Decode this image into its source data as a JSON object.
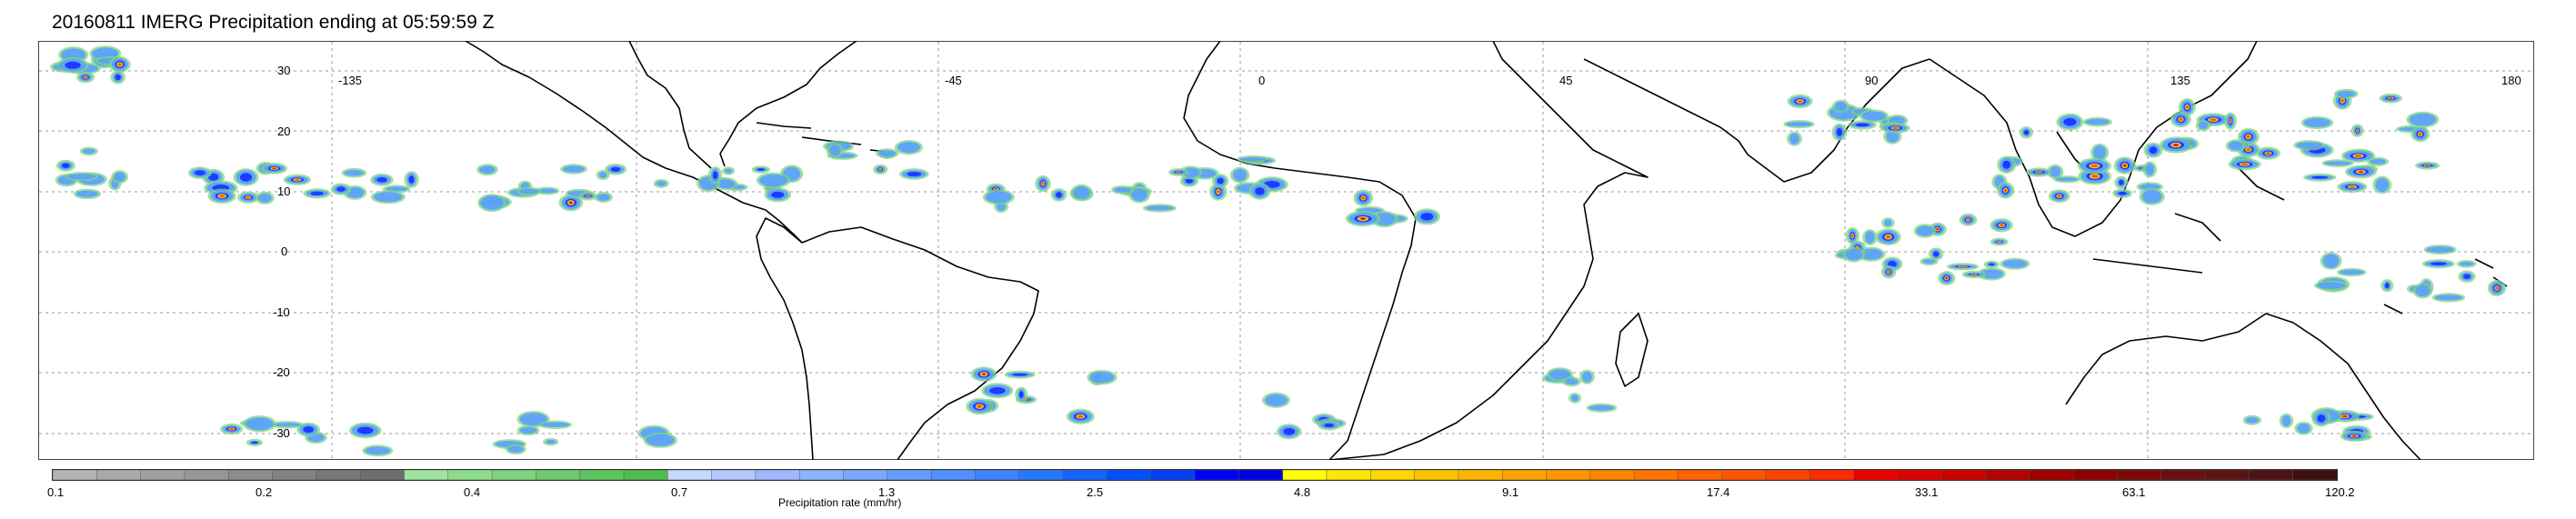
{
  "title": "20160811 IMERG Precipitation ending at 05:59:59 Z",
  "map": {
    "lon_ticks": [
      "-135",
      "-45",
      "0",
      "45",
      "90",
      "135",
      "180"
    ],
    "lat_ticks": [
      "30",
      "20",
      "10",
      "0",
      "-10",
      "-20",
      "-30"
    ]
  },
  "colorbar": {
    "label": "Precipitation rate (mm/hr)",
    "tick_labels": [
      "0.1",
      "0.2",
      "0.4",
      "0.7",
      "1.3",
      "2.5",
      "4.8",
      "9.1",
      "17.4",
      "33.1",
      "63.1",
      "120.2"
    ],
    "colors": {
      "grey": [
        "#b4b4b4",
        "#aaaaaa",
        "#a0a0a0",
        "#969696",
        "#8c8c8c",
        "#828282",
        "#787878",
        "#6e6e6e"
      ],
      "green": [
        "#9ee49e",
        "#8edc8e",
        "#7ed47e",
        "#6ecc6e",
        "#5ec45e",
        "#4ebc4e"
      ],
      "light_blue": [
        "#c8d8ff",
        "#b4c8ff",
        "#a0b8ff",
        "#8cb4ff",
        "#78a8ff",
        "#649cff",
        "#5090ff",
        "#3c84ff",
        "#2878ff",
        "#1464ff",
        "#0050ff",
        "#0040f0"
      ],
      "blue": [
        "#0000ff",
        "#0000e6"
      ],
      "yellow": [
        "#ffff00",
        "#ffe800",
        "#ffd600",
        "#ffc400",
        "#ffb400",
        "#ffa400"
      ],
      "orange": [
        "#ff9400",
        "#ff8400",
        "#ff7400",
        "#ff6400",
        "#ff5400",
        "#ff4400"
      ],
      "red": [
        "#ff2a00",
        "#f00000",
        "#dc0000",
        "#c80000",
        "#b40000",
        "#a00000"
      ],
      "dark_red": [
        "#8c0000",
        "#7a0a0a",
        "#6a1010",
        "#5a1414",
        "#4e1414",
        "#401010"
      ]
    },
    "precip_colors": {
      "light": "#5aa0ff",
      "medium": "#1e3cff",
      "heavy": "#ffd200",
      "very_heavy": "#ff5a00",
      "extreme": "#b40000",
      "trace_green": "#7ed47e"
    }
  }
}
